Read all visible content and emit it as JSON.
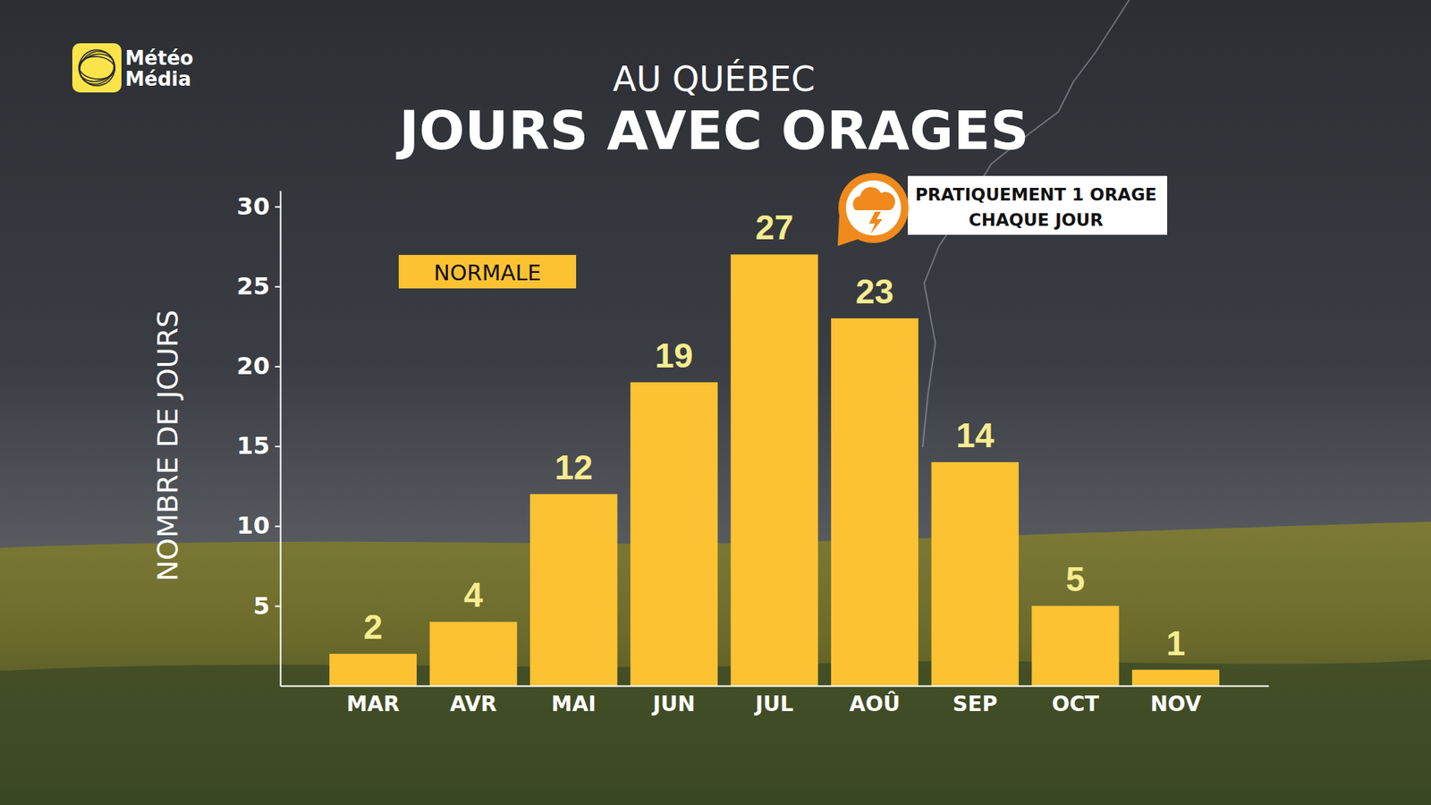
{
  "chart_data": {
    "type": "bar",
    "brand": [
      "Météo",
      "Média"
    ],
    "subtitle": "AU QUÉBEC",
    "title": "JOURS AVEC ORAGES",
    "y_label": "NOMBRE DE JOURS",
    "annotation": [
      "PRATIQUEMENT 1 ORAGE",
      "CHAQUE JOUR"
    ],
    "categories": [
      "MAR",
      "AVR",
      "MAI",
      "JUN",
      "JUL",
      "AOÛ",
      "SEP",
      "OCT",
      "NOV"
    ],
    "series": [
      {
        "name": "NORMALE",
        "color": "#fcc232",
        "values": [
          2,
          4,
          12,
          19,
          27,
          23,
          14,
          5,
          1
        ]
      }
    ],
    "ylim": [
      0,
      31
    ],
    "yticks": [
      5,
      10,
      15,
      20,
      25,
      30
    ],
    "grid": false,
    "legend": "top-left",
    "data_labels": true
  }
}
